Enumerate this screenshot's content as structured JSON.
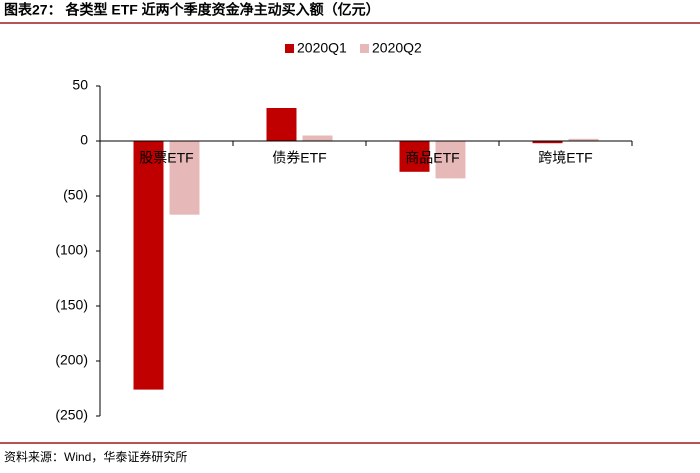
{
  "chart_data": {
    "type": "bar",
    "title": "图表27：  各类型 ETF 近两个季度资金净主动买入额（亿元）",
    "source": "资料来源：Wind，华泰证券研究所",
    "categories": [
      "股票ETF",
      "债券ETF",
      "商品ETF",
      "跨境ETF"
    ],
    "series": [
      {
        "name": "2020Q1",
        "color": "#c00000",
        "values": [
          -226,
          30,
          -28,
          -2
        ]
      },
      {
        "name": "2020Q2",
        "color": "#e6b9b8",
        "values": [
          -67,
          5,
          -34,
          2
        ]
      }
    ],
    "ylim": [
      -250,
      50
    ],
    "yticks": [
      50,
      0,
      {
        "value": -50,
        "label": "(50)"
      },
      {
        "value": -100,
        "label": "(100)"
      },
      {
        "value": -150,
        "label": "(150)"
      },
      {
        "value": -200,
        "label": "(200)"
      },
      {
        "value": -250,
        "label": "(250)"
      }
    ]
  }
}
